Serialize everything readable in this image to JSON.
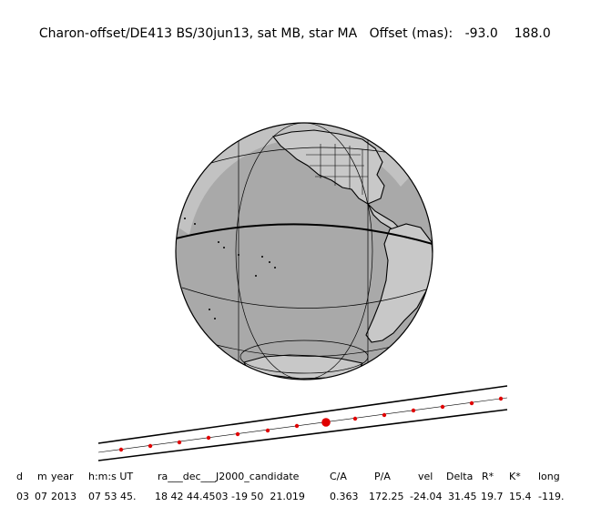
{
  "header": {
    "event_label": "Charon-offset/DE413 BS/30jun13, sat MB, star MA",
    "offset_label": "Offset (mas):",
    "offset_x": "-93.0",
    "offset_y": "188.0"
  },
  "colors": {
    "ocean": "#a9a9a9",
    "land": "#c8c8c8",
    "outline": "#000000",
    "path_dot": "#e00000"
  },
  "table": {
    "headers": [
      "d",
      "m",
      "year",
      "h:m:s UT",
      "ra___dec___J2000_candidate",
      "C/A",
      "P/A",
      "vel",
      "Delta",
      "R*",
      "K*",
      "long"
    ],
    "values": [
      "03",
      "07",
      "2013",
      "07 53 45.",
      "18 42 44.4503 -19 50  21.019",
      "0.363",
      "172.25",
      "-24.04",
      "31.45",
      "19.7",
      "15.4",
      "-119."
    ]
  }
}
